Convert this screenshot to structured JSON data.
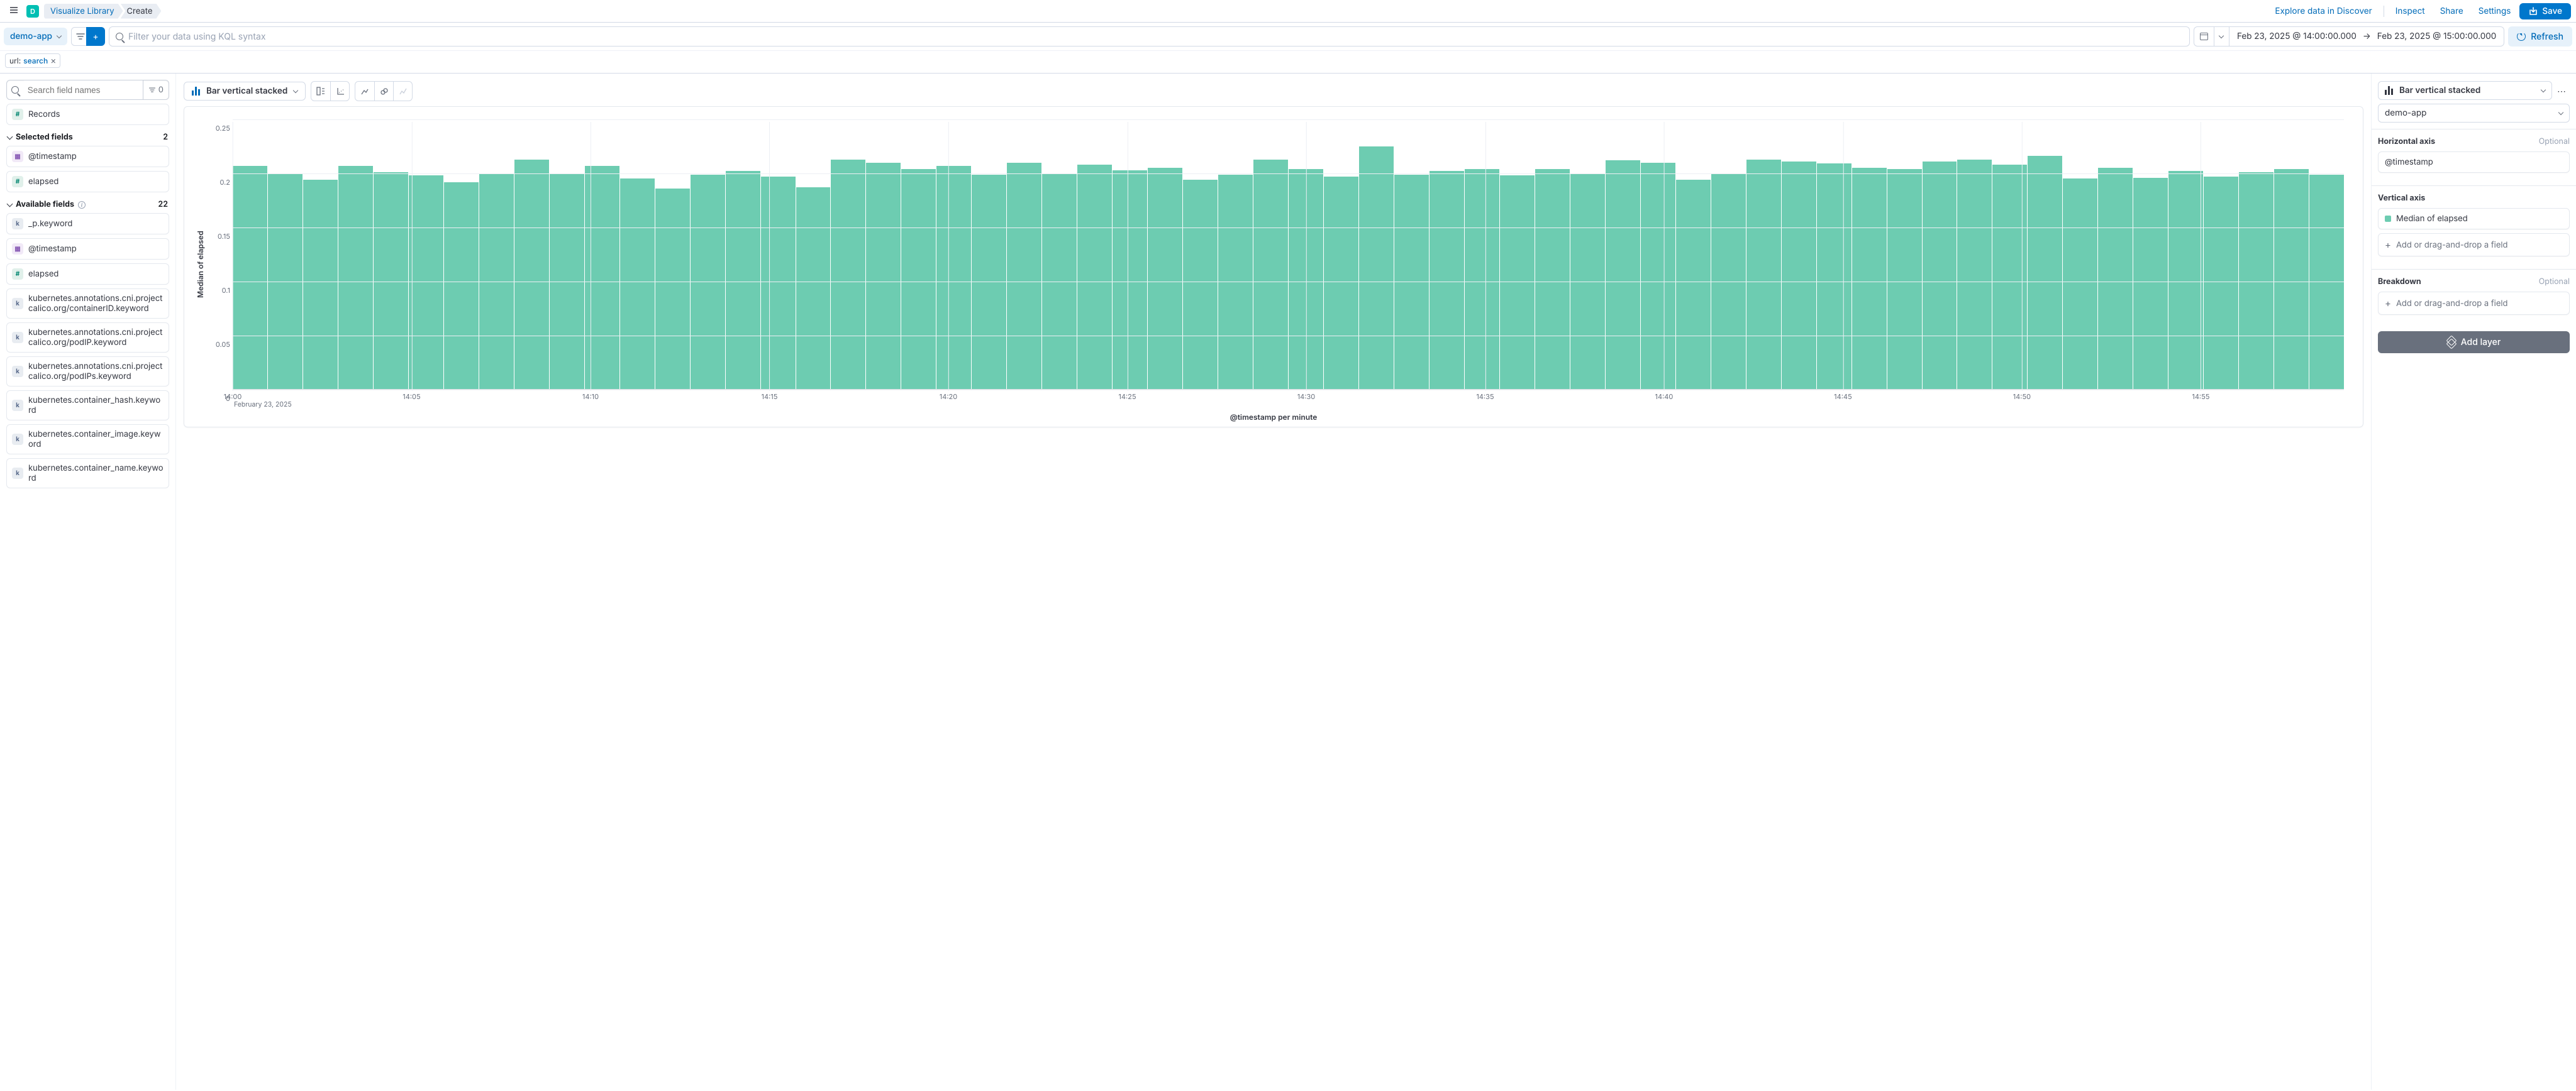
{
  "breadcrumb": {
    "library": "Visualize Library",
    "create": "Create"
  },
  "avatar_letter": "D",
  "top_nav": {
    "explore": "Explore data in Discover",
    "inspect": "Inspect",
    "share": "Share",
    "settings": "Settings",
    "save": "Save"
  },
  "index_pattern": "demo-app",
  "query_placeholder": "Filter your data using KQL syntax",
  "time": {
    "from": "Feb 23, 2025 @ 14:00:00.000",
    "to": "Feb 23, 2025 @ 15:00:00.000",
    "arrow": "→"
  },
  "refresh": "Refresh",
  "filter_pill": {
    "key": "url: ",
    "value": "search"
  },
  "left": {
    "search_placeholder": "Search field names",
    "filter_count": "0",
    "records": "Records",
    "selected_label": "Selected fields",
    "selected_count": "2",
    "available_label": "Available fields",
    "available_count": "22",
    "selected": [
      {
        "tok": "d",
        "glyph": "▦",
        "name": "@timestamp"
      },
      {
        "tok": "n",
        "glyph": "#",
        "name": "elapsed"
      }
    ],
    "available": [
      {
        "tok": "k",
        "glyph": "k",
        "name": "_p.keyword"
      },
      {
        "tok": "d",
        "glyph": "▦",
        "name": "@timestamp"
      },
      {
        "tok": "n",
        "glyph": "#",
        "name": "elapsed"
      },
      {
        "tok": "k",
        "glyph": "k",
        "name": "kubernetes.annotations.cni.projectcalico.org/containerID.keyword"
      },
      {
        "tok": "k",
        "glyph": "k",
        "name": "kubernetes.annotations.cni.projectcalico.org/podIP.keyword"
      },
      {
        "tok": "k",
        "glyph": "k",
        "name": "kubernetes.annotations.cni.projectcalico.org/podIPs.keyword"
      },
      {
        "tok": "k",
        "glyph": "k",
        "name": "kubernetes.container_hash.keyword"
      },
      {
        "tok": "k",
        "glyph": "k",
        "name": "kubernetes.container_image.keyword"
      },
      {
        "tok": "k",
        "glyph": "k",
        "name": "kubernetes.container_name.keyword"
      }
    ]
  },
  "chart_type": "Bar vertical stacked",
  "chart": {
    "y_label": "Median of elapsed",
    "x_label": "@timestamp per minute",
    "x_sublabel": "February 23, 2025",
    "y_max": 0.25,
    "y_ticks": [
      {
        "v": 0.25,
        "l": "0.25"
      },
      {
        "v": 0.2,
        "l": "0.2"
      },
      {
        "v": 0.15,
        "l": "0.15"
      },
      {
        "v": 0.1,
        "l": "0.1"
      },
      {
        "v": 0.05,
        "l": "0.05"
      },
      {
        "v": 0,
        "l": "0"
      }
    ],
    "x_ticks": [
      "14:00",
      "14:05",
      "14:10",
      "14:15",
      "14:20",
      "14:25",
      "14:30",
      "14:35",
      "14:40",
      "14:45",
      "14:50",
      "14:55"
    ],
    "bar_color": "#6dccb1",
    "values": [
      0.207,
      0.2,
      0.194,
      0.207,
      0.201,
      0.198,
      0.192,
      0.2,
      0.213,
      0.2,
      0.207,
      0.195,
      0.186,
      0.199,
      0.202,
      0.197,
      0.187,
      0.213,
      0.21,
      0.204,
      0.207,
      0.199,
      0.21,
      0.2,
      0.208,
      0.203,
      0.205,
      0.194,
      0.199,
      0.213,
      0.204,
      0.197,
      0.225,
      0.199,
      0.202,
      0.204,
      0.198,
      0.204,
      0.2,
      0.212,
      0.21,
      0.194,
      0.2,
      0.213,
      0.211,
      0.209,
      0.205,
      0.204,
      0.211,
      0.213,
      0.208,
      0.216,
      0.195,
      0.205,
      0.196,
      0.202,
      0.197,
      0.201,
      0.204,
      0.199
    ]
  },
  "right": {
    "vis_type": "Bar vertical stacked",
    "data_view": "demo-app",
    "haxis_label": "Horizontal axis",
    "haxis_value": "@timestamp",
    "vaxis_label": "Vertical axis",
    "vaxis_value": "Median of elapsed",
    "bdown_label": "Breakdown",
    "optional": "Optional",
    "add_field": "Add or drag-and-drop a field",
    "add_layer": "Add layer"
  }
}
